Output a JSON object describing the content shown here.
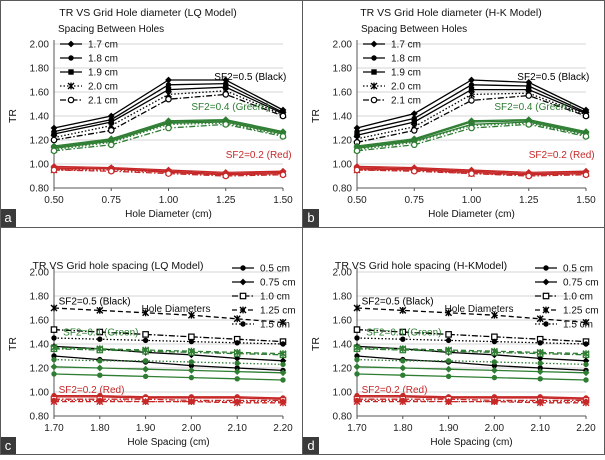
{
  "figure": {
    "divider_color": "#5a5a5a",
    "label_bg": "#3a3a3a"
  },
  "chart_data": [
    {
      "panel": "a",
      "type": "line",
      "title": "TR VS Grid Hole diameter (LQ Model)",
      "xlabel": "Hole Diameter (cm)",
      "ylabel": "TR",
      "xlim": [
        0.5,
        1.5
      ],
      "ylim": [
        0.8,
        2.0
      ],
      "xticks": [
        "0.50",
        "0.75",
        "1.00",
        "1.25",
        "1.50"
      ],
      "yticks": [
        "0.80",
        "1.00",
        "1.20",
        "1.40",
        "1.60",
        "1.80",
        "2.00"
      ],
      "grid": "horizontal",
      "legend": {
        "title": "Spacing Between Holes",
        "position": "top-left",
        "entries": [
          {
            "label": "1.7 cm",
            "marker": "diamond",
            "dash": "solid"
          },
          {
            "label": "1.8 cm",
            "marker": "circle",
            "dash": "solid"
          },
          {
            "label": "1.9 cm",
            "marker": "square",
            "dash": "solid"
          },
          {
            "label": "2.0 cm",
            "marker": "x",
            "dash": "dot"
          },
          {
            "label": "2.1 cm",
            "marker": "ocircle",
            "dash": "dashdot"
          }
        ]
      },
      "annotations": [
        {
          "text": "SF2=0.5 (Black)",
          "x": 1.2,
          "y": 1.7,
          "color": "#000000"
        },
        {
          "text": "SF2=0.4 (Green )",
          "x": 1.1,
          "y": 1.45,
          "color": "#2e7d32"
        },
        {
          "text": "SF2=0.2 (Red)",
          "x": 1.25,
          "y": 1.05,
          "color": "#c62828"
        }
      ],
      "x": [
        0.5,
        0.75,
        1.0,
        1.25,
        1.5
      ],
      "groups": [
        {
          "color": "#000000",
          "series": [
            [
              1.3,
              1.4,
              1.7,
              1.7,
              1.45
            ],
            [
              1.27,
              1.37,
              1.66,
              1.67,
              1.43
            ],
            [
              1.25,
              1.35,
              1.62,
              1.64,
              1.42
            ],
            [
              1.22,
              1.32,
              1.58,
              1.61,
              1.41
            ],
            [
              1.2,
              1.28,
              1.54,
              1.58,
              1.4
            ]
          ]
        },
        {
          "color": "#2e7d32",
          "series": [
            [
              1.15,
              1.21,
              1.36,
              1.37,
              1.27
            ],
            [
              1.14,
              1.2,
              1.35,
              1.36,
              1.26
            ],
            [
              1.13,
              1.19,
              1.34,
              1.35,
              1.25
            ],
            [
              1.12,
              1.18,
              1.33,
              1.34,
              1.24
            ],
            [
              1.11,
              1.16,
              1.3,
              1.33,
              1.23
            ]
          ]
        },
        {
          "color": "#c62828",
          "series": [
            [
              0.98,
              0.97,
              0.95,
              0.93,
              0.94
            ],
            [
              0.97,
              0.96,
              0.94,
              0.92,
              0.93
            ],
            [
              0.96,
              0.96,
              0.93,
              0.91,
              0.92
            ],
            [
              0.95,
              0.95,
              0.93,
              0.91,
              0.92
            ],
            [
              0.95,
              0.94,
              0.92,
              0.9,
              0.91
            ]
          ]
        }
      ]
    },
    {
      "panel": "b",
      "type": "line",
      "title": "TR VS Grid Hole diameter (H-K Model)",
      "xlabel": "Hole Diameter (cm)",
      "ylabel": "TR",
      "xlim": [
        0.5,
        1.5
      ],
      "ylim": [
        0.8,
        2.0
      ],
      "xticks": [
        "0.50",
        "0.75",
        "1.00",
        "1.25",
        "1.50"
      ],
      "yticks": [
        "0.80",
        "1.00",
        "1.20",
        "1.40",
        "1.60",
        "1.80",
        "2.00"
      ],
      "grid": "horizontal",
      "legend": {
        "title": "Spacing Between Holes",
        "position": "top-left",
        "entries": [
          {
            "label": "1.7 cm",
            "marker": "diamond",
            "dash": "solid"
          },
          {
            "label": "1.8 cm",
            "marker": "circle",
            "dash": "solid"
          },
          {
            "label": "1.9 cm",
            "marker": "square",
            "dash": "solid"
          },
          {
            "label": "2.0 cm",
            "marker": "x",
            "dash": "dot"
          },
          {
            "label": "2.1 cm",
            "marker": "ocircle",
            "dash": "dashdot"
          }
        ]
      },
      "annotations": [
        {
          "text": "SF2=0.5 (Black)",
          "x": 1.2,
          "y": 1.7,
          "color": "#000000"
        },
        {
          "text": "SF2=0.4 (Green )",
          "x": 1.1,
          "y": 1.45,
          "color": "#2e7d32"
        },
        {
          "text": "SF2=0.2 (Red)",
          "x": 1.25,
          "y": 1.05,
          "color": "#c62828"
        }
      ],
      "x": [
        0.5,
        0.75,
        1.0,
        1.25,
        1.5
      ],
      "groups": [
        {
          "color": "#000000",
          "series": [
            [
              1.3,
              1.42,
              1.7,
              1.68,
              1.45
            ],
            [
              1.27,
              1.38,
              1.66,
              1.65,
              1.43
            ],
            [
              1.24,
              1.35,
              1.62,
              1.62,
              1.42
            ],
            [
              1.21,
              1.31,
              1.58,
              1.59,
              1.41
            ],
            [
              1.18,
              1.28,
              1.53,
              1.57,
              1.4
            ]
          ]
        },
        {
          "color": "#2e7d32",
          "series": [
            [
              1.15,
              1.21,
              1.36,
              1.37,
              1.27
            ],
            [
              1.14,
              1.2,
              1.35,
              1.36,
              1.26
            ],
            [
              1.13,
              1.19,
              1.33,
              1.35,
              1.25
            ],
            [
              1.12,
              1.18,
              1.32,
              1.34,
              1.24
            ],
            [
              1.11,
              1.16,
              1.3,
              1.33,
              1.23
            ]
          ]
        },
        {
          "color": "#c62828",
          "series": [
            [
              0.98,
              0.97,
              0.95,
              0.93,
              0.94
            ],
            [
              0.97,
              0.96,
              0.94,
              0.92,
              0.93
            ],
            [
              0.96,
              0.95,
              0.93,
              0.91,
              0.92
            ],
            [
              0.95,
              0.95,
              0.92,
              0.91,
              0.92
            ],
            [
              0.95,
              0.94,
              0.92,
              0.9,
              0.91
            ]
          ]
        }
      ]
    },
    {
      "panel": "c",
      "type": "line",
      "title": "TR VS Grid hole spacing (LQ Model)",
      "xlabel": "Hole Spacing (cm)",
      "ylabel": "TR",
      "xlim": [
        1.7,
        2.2
      ],
      "ylim": [
        0.8,
        2.0
      ],
      "xticks": [
        "1.70",
        "1.80",
        "1.90",
        "2.00",
        "2.10",
        "2.20"
      ],
      "yticks": [
        "0.80",
        "1.00",
        "1.20",
        "1.40",
        "1.60",
        "1.80",
        "2.00"
      ],
      "grid": "horizontal",
      "legend": {
        "title": "Hole  Diameters",
        "position": "top-right",
        "entries": [
          {
            "label": "0.5 cm",
            "marker": "circle",
            "dash": "solid"
          },
          {
            "label": "0.75 cm",
            "marker": "diamond",
            "dash": "solid"
          },
          {
            "label": "1.0 cm",
            "marker": "osquare",
            "dash": "dashdot"
          },
          {
            "label": "1.25 cm",
            "marker": "x",
            "dash": "dash"
          },
          {
            "label": "1.5 cm",
            "marker": "circle",
            "dash": "dot"
          }
        ]
      },
      "annotations": [
        {
          "text": "SF2=0.5 (Black)",
          "x": 1.71,
          "y": 1.73,
          "color": "#000000"
        },
        {
          "text": "SF2=0.4 (Green)",
          "x": 1.72,
          "y": 1.47,
          "color": "#2e7d32"
        },
        {
          "text": "SF2=0.2 (Red)",
          "x": 1.71,
          "y": 0.99,
          "color": "#c62828"
        }
      ],
      "x": [
        1.7,
        1.8,
        1.9,
        2.0,
        2.1,
        2.2
      ],
      "groups": [
        {
          "color": "#000000",
          "series": [
            [
              1.3,
              1.27,
              1.25,
              1.22,
              1.2,
              1.18
            ],
            [
              1.38,
              1.36,
              1.33,
              1.31,
              1.28,
              1.26
            ],
            [
              1.52,
              1.5,
              1.48,
              1.46,
              1.44,
              1.42
            ],
            [
              1.7,
              1.68,
              1.66,
              1.64,
              1.61,
              1.58
            ],
            [
              1.45,
              1.44,
              1.43,
              1.42,
              1.41,
              1.4
            ]
          ]
        },
        {
          "color": "#2e7d32",
          "series": [
            [
              1.15,
              1.14,
              1.13,
              1.12,
              1.11,
              1.1
            ],
            [
              1.21,
              1.2,
              1.19,
              1.18,
              1.17,
              1.16
            ],
            [
              1.36,
              1.35,
              1.34,
              1.33,
              1.32,
              1.31
            ],
            [
              1.37,
              1.36,
              1.35,
              1.34,
              1.33,
              1.32
            ],
            [
              1.27,
              1.26,
              1.26,
              1.25,
              1.24,
              1.23
            ]
          ]
        },
        {
          "color": "#c62828",
          "series": [
            [
              0.97,
              0.97,
              0.96,
              0.96,
              0.96,
              0.95
            ],
            [
              0.96,
              0.96,
              0.95,
              0.95,
              0.95,
              0.94
            ],
            [
              0.94,
              0.94,
              0.94,
              0.93,
              0.93,
              0.93
            ],
            [
              0.92,
              0.92,
              0.92,
              0.92,
              0.91,
              0.91
            ],
            [
              0.93,
              0.93,
              0.92,
              0.92,
              0.92,
              0.92
            ]
          ]
        }
      ]
    },
    {
      "panel": "d",
      "type": "line",
      "title": "TR VS Grid hole spacing (H-KModel)",
      "xlabel": "Hole Spacing (cm)",
      "ylabel": "TR",
      "xlim": [
        1.7,
        2.2
      ],
      "ylim": [
        0.8,
        2.0
      ],
      "xticks": [
        "1.70",
        "1.80",
        "1.90",
        "2.00",
        "2.10",
        "2.20"
      ],
      "yticks": [
        "0.80",
        "1.00",
        "1.20",
        "1.40",
        "1.60",
        "1.80",
        "2.00"
      ],
      "grid": "horizontal",
      "legend": {
        "title": "Hole  Diameters",
        "position": "top-right",
        "entries": [
          {
            "label": "0.5 cm",
            "marker": "circle",
            "dash": "solid"
          },
          {
            "label": "0.75 cm",
            "marker": "diamond",
            "dash": "solid"
          },
          {
            "label": "1.0 cm",
            "marker": "osquare",
            "dash": "dashdot"
          },
          {
            "label": "1.25 cm",
            "marker": "x",
            "dash": "dash"
          },
          {
            "label": "1.5 cm",
            "marker": "circle",
            "dash": "dot"
          }
        ]
      },
      "annotations": [
        {
          "text": "SF2=0.5 (Black)",
          "x": 1.71,
          "y": 1.73,
          "color": "#000000"
        },
        {
          "text": "SF2=0.4 (Green)",
          "x": 1.72,
          "y": 1.47,
          "color": "#2e7d32"
        },
        {
          "text": "SF2=0.2 (Red)",
          "x": 1.71,
          "y": 0.99,
          "color": "#c62828"
        }
      ],
      "x": [
        1.7,
        1.8,
        1.9,
        2.0,
        2.1,
        2.2
      ],
      "groups": [
        {
          "color": "#000000",
          "series": [
            [
              1.3,
              1.27,
              1.25,
              1.22,
              1.2,
              1.18
            ],
            [
              1.38,
              1.36,
              1.33,
              1.31,
              1.28,
              1.26
            ],
            [
              1.52,
              1.5,
              1.48,
              1.46,
              1.44,
              1.42
            ],
            [
              1.7,
              1.68,
              1.66,
              1.64,
              1.61,
              1.58
            ],
            [
              1.45,
              1.44,
              1.43,
              1.42,
              1.41,
              1.4
            ]
          ]
        },
        {
          "color": "#2e7d32",
          "series": [
            [
              1.15,
              1.14,
              1.13,
              1.12,
              1.11,
              1.1
            ],
            [
              1.21,
              1.2,
              1.19,
              1.18,
              1.17,
              1.16
            ],
            [
              1.36,
              1.35,
              1.34,
              1.33,
              1.32,
              1.31
            ],
            [
              1.37,
              1.36,
              1.35,
              1.34,
              1.33,
              1.32
            ],
            [
              1.27,
              1.26,
              1.26,
              1.25,
              1.24,
              1.23
            ]
          ]
        },
        {
          "color": "#c62828",
          "series": [
            [
              0.97,
              0.97,
              0.96,
              0.96,
              0.96,
              0.95
            ],
            [
              0.96,
              0.96,
              0.95,
              0.95,
              0.95,
              0.94
            ],
            [
              0.94,
              0.94,
              0.94,
              0.93,
              0.93,
              0.93
            ],
            [
              0.92,
              0.92,
              0.92,
              0.92,
              0.91,
              0.91
            ],
            [
              0.93,
              0.93,
              0.92,
              0.92,
              0.92,
              0.92
            ]
          ]
        }
      ]
    }
  ]
}
